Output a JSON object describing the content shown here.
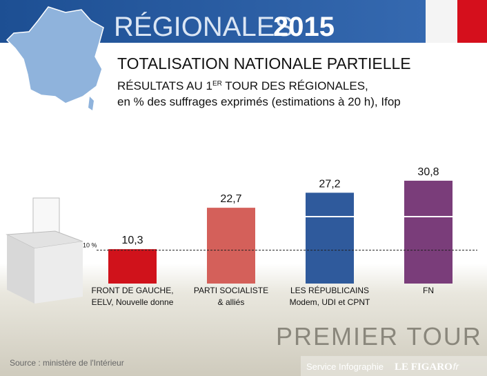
{
  "header": {
    "word": "RÉGIONALES",
    "year": "2015"
  },
  "chart_data": {
    "type": "bar",
    "title": "TOTALISATION NATIONALE PARTIELLE",
    "subtitle": {
      "part1": "RÉSULTATS AU 1",
      "sup": "ER",
      "part2": " TOUR DES RÉGIONALES,",
      "line2": "en % des suffrages exprimés (estimations à 20 h), Ifop"
    },
    "categories": [
      [
        "FRONT DE GAUCHE,",
        "EELV, Nouvelle donne"
      ],
      [
        "PARTI SOCIALISTE",
        "& alliés"
      ],
      [
        "LES RÉPUBLICAINS",
        "Modem, UDI et CPNT"
      ],
      [
        "FN"
      ]
    ],
    "values": [
      10.3,
      22.7,
      27.2,
      30.8
    ],
    "value_labels": [
      "10,3",
      "22,7",
      "27,2",
      "30,8"
    ],
    "colors": [
      "#d0121b",
      "#d4605a",
      "#2f5a9c",
      "#7a3d7a"
    ],
    "ylim": [
      0,
      31
    ],
    "reference_line": {
      "value": 10,
      "label": "10 %"
    }
  },
  "banner": "PREMIER TOUR",
  "footer": {
    "source": "Source : ministère de l'Intérieur",
    "service": "Service Infographie",
    "brand": "LE FIGARO",
    "suffix": "·fr"
  }
}
